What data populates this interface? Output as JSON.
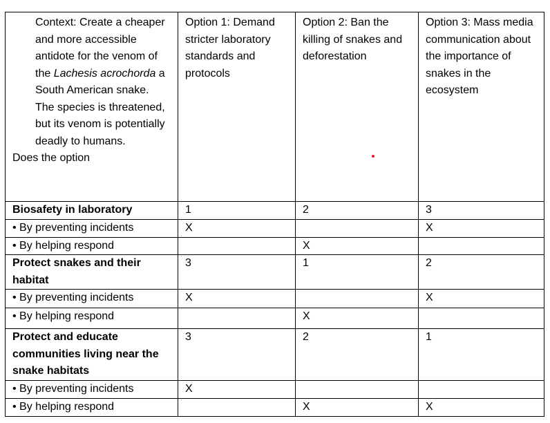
{
  "header": {
    "context_lines": [
      "Context: Create a cheaper and more accessible antidote for the venom of the",
      "Lachesis acrochorda",
      " a South American snake. The species is threatened, but its venom is potentially deadly to humans."
    ],
    "question": "Does the option",
    "options": [
      "Option 1: Demand stricter laboratory standards and protocols",
      "Option 2: Ban the killing of snakes and deforestation",
      "Option 3: Mass media communication about the importance of snakes in the ecosystem"
    ]
  },
  "rows": [
    {
      "label": "Biosafety in laboratory",
      "bold": true,
      "cells": [
        "1",
        "2",
        "3"
      ]
    },
    {
      "label": "• By preventing incidents",
      "cells": [
        "X",
        "",
        "X"
      ]
    },
    {
      "label": "• By helping respond",
      "cells": [
        "",
        "X",
        ""
      ]
    },
    {
      "label": "Protect snakes and their habitat",
      "bold": true,
      "cells": [
        "3",
        "1",
        "2"
      ]
    },
    {
      "label": "• By preventing incidents",
      "cells": [
        "X",
        "",
        "X"
      ]
    },
    {
      "label": "• By helping respond",
      "cells": [
        "",
        "X",
        ""
      ]
    },
    {
      "label": "Protect and educate communities living near the snake habitats",
      "bold": true,
      "cells": [
        "3",
        "2",
        "1"
      ]
    },
    {
      "label": "• By preventing incidents",
      "cells": [
        "X",
        "",
        ""
      ]
    },
    {
      "label": "• By helping respond",
      "cells": [
        "",
        "X",
        "X"
      ]
    }
  ],
  "colors": {
    "border": "#000000",
    "dot": "#e0201c"
  }
}
